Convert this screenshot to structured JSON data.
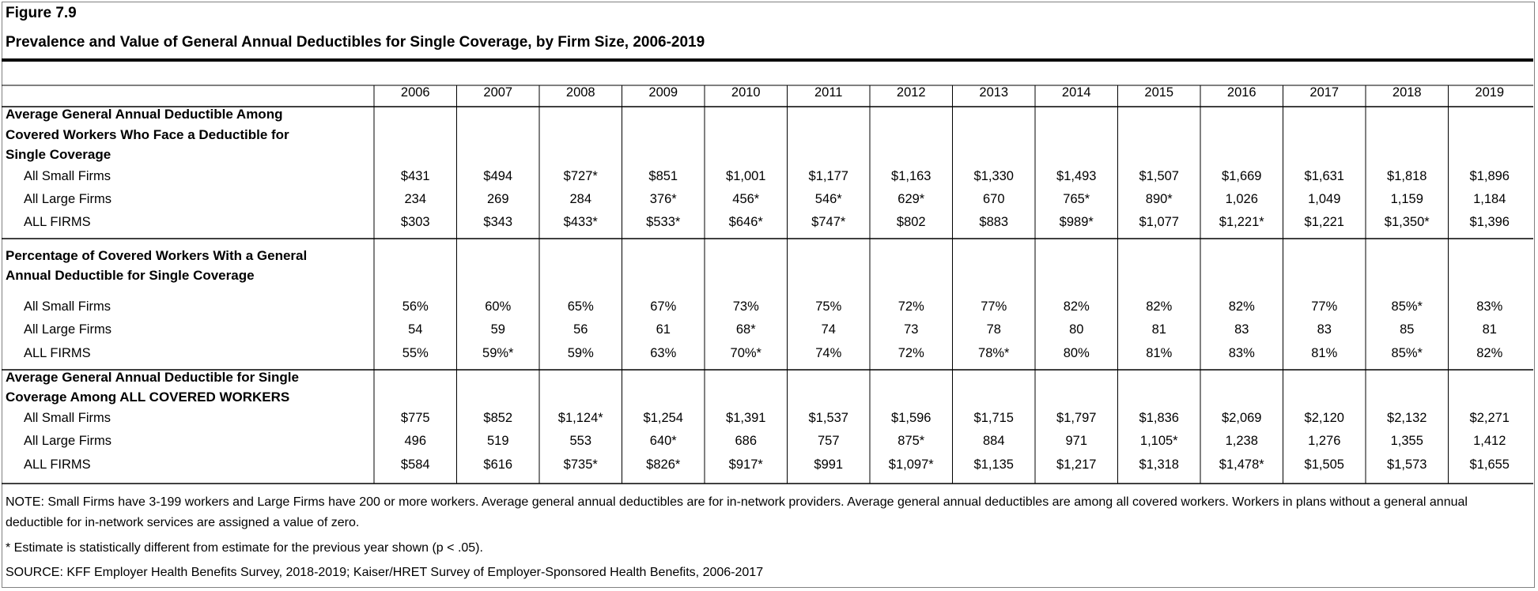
{
  "figure_label": "Figure 7.9",
  "title": "Prevalence and Value of General Annual Deductibles for Single Coverage, by Firm Size, 2006-2019",
  "chart_data": {
    "type": "table",
    "columns": [
      "2006",
      "2007",
      "2008",
      "2009",
      "2010",
      "2011",
      "2012",
      "2013",
      "2014",
      "2015",
      "2016",
      "2017",
      "2018",
      "2019"
    ],
    "sections": [
      {
        "title_lines": [
          "Average General Annual Deductible Among",
          "Covered Workers Who Face a Deductible for",
          "Single Coverage"
        ],
        "rows": [
          {
            "label": "All Small Firms",
            "values": [
              "$431",
              "$494",
              "$727*",
              "$851",
              "$1,001",
              "$1,177",
              "$1,163",
              "$1,330",
              "$1,493",
              "$1,507",
              "$1,669",
              "$1,631",
              "$1,818",
              "$1,896"
            ]
          },
          {
            "label": "All Large Firms",
            "values": [
              "234",
              "269",
              "284",
              "376*",
              "456*",
              "546*",
              "629*",
              "670",
              "765*",
              "890*",
              "1,026",
              "1,049",
              "1,159",
              "1,184"
            ]
          },
          {
            "label": "ALL FIRMS",
            "values": [
              "$303",
              "$343",
              "$433*",
              "$533*",
              "$646*",
              "$747*",
              "$802",
              "$883",
              "$989*",
              "$1,077",
              "$1,221*",
              "$1,221",
              "$1,350*",
              "$1,396"
            ]
          }
        ]
      },
      {
        "title_lines": [
          "Percentage of Covered Workers With a General",
          "Annual Deductible for Single Coverage"
        ],
        "rows": [
          {
            "label": "All Small Firms",
            "values": [
              "56%",
              "60%",
              "65%",
              "67%",
              "73%",
              "75%",
              "72%",
              "77%",
              "82%",
              "82%",
              "82%",
              "77%",
              "85%*",
              "83%"
            ]
          },
          {
            "label": "All Large Firms",
            "values": [
              "54",
              "59",
              "56",
              "61",
              "68*",
              "74",
              "73",
              "78",
              "80",
              "81",
              "83",
              "83",
              "85",
              "81"
            ]
          },
          {
            "label": "ALL FIRMS",
            "values": [
              "55%",
              "59%*",
              "59%",
              "63%",
              "70%*",
              "74%",
              "72%",
              "78%*",
              "80%",
              "81%",
              "83%",
              "81%",
              "85%*",
              "82%"
            ]
          }
        ]
      },
      {
        "title_lines": [
          "Average General Annual Deductible for Single",
          "Coverage Among ALL COVERED WORKERS"
        ],
        "rows": [
          {
            "label": "All Small Firms",
            "values": [
              "$775",
              "$852",
              "$1,124*",
              "$1,254",
              "$1,391",
              "$1,537",
              "$1,596",
              "$1,715",
              "$1,797",
              "$1,836",
              "$2,069",
              "$2,120",
              "$2,132",
              "$2,271"
            ]
          },
          {
            "label": "All Large Firms",
            "values": [
              "496",
              "519",
              "553",
              "640*",
              "686",
              "757",
              "875*",
              "884",
              "971",
              "1,105*",
              "1,238",
              "1,276",
              "1,355",
              "1,412"
            ]
          },
          {
            "label": "ALL FIRMS",
            "values": [
              "$584",
              "$616",
              "$735*",
              "$826*",
              "$917*",
              "$991",
              "$1,097*",
              "$1,135",
              "$1,217",
              "$1,318",
              "$1,478*",
              "$1,505",
              "$1,573",
              "$1,655"
            ]
          }
        ]
      }
    ]
  },
  "note": "NOTE: Small Firms have 3-199 workers and Large Firms have 200 or more workers. Average general annual deductibles are for in-network providers. Average general annual deductibles are among all covered workers. Workers in plans without a general annual deductible for in-network services are assigned a value of zero.",
  "footnote": "* Estimate is statistically different from estimate for the previous year shown (p < .05).",
  "source": "SOURCE: KFF Employer Health Benefits Survey, 2018-2019; Kaiser/HRET Survey of Employer-Sponsored Health Benefits, 2006-2017"
}
